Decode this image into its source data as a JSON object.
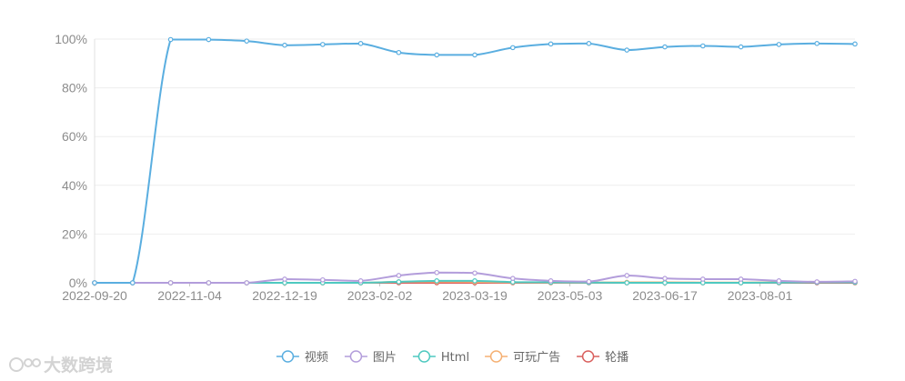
{
  "watermark": {
    "text": "大数跨境"
  },
  "chart_data": {
    "type": "line",
    "x": [
      "2022-09-20",
      "2022-10-08",
      "2022-10-26",
      "2022-11-13",
      "2022-12-01",
      "2022-12-19",
      "2023-01-06",
      "2023-01-24",
      "2023-02-11",
      "2023-03-01",
      "2023-03-19",
      "2023-04-06",
      "2023-04-24",
      "2023-05-12",
      "2023-05-30",
      "2023-06-17",
      "2023-07-05",
      "2023-07-23",
      "2023-08-10",
      "2023-08-28",
      "2023-09-15"
    ],
    "x_ticks": [
      "2022-09-20",
      "2022-11-04",
      "2022-12-19",
      "2023-02-02",
      "2023-03-19",
      "2023-05-03",
      "2023-06-17",
      "2023-08-01"
    ],
    "y_ticks": [
      "0%",
      "20%",
      "40%",
      "60%",
      "80%",
      "100%"
    ],
    "ylim": [
      0,
      100
    ],
    "y_unit": "%",
    "grid": true,
    "legend_position": "bottom-center",
    "series": [
      {
        "name": "视频",
        "color": "#5aaee0",
        "values": [
          0,
          0,
          99.8,
          99.8,
          99.2,
          97.5,
          97.8,
          98.2,
          94.5,
          93.5,
          93.5,
          96.5,
          98.0,
          98.2,
          95.5,
          96.8,
          97.2,
          96.8,
          97.8,
          98.2,
          98.0
        ]
      },
      {
        "name": "图片",
        "color": "#b39ddb",
        "values": [
          0,
          0,
          0,
          0,
          0,
          1.5,
          1.2,
          0.8,
          3.0,
          4.2,
          4.0,
          1.8,
          0.8,
          0.5,
          3.0,
          1.8,
          1.5,
          1.5,
          0.8,
          0.4,
          0.6
        ]
      },
      {
        "name": "Html",
        "color": "#4ec9c0",
        "values": [
          0,
          0,
          0,
          0,
          0,
          0,
          0,
          0,
          0.4,
          0.8,
          0.8,
          0.3,
          0.2,
          0.1,
          0,
          0,
          0,
          0,
          0.1,
          0.2,
          0.2
        ]
      },
      {
        "name": "可玩广告",
        "color": "#f5b073",
        "values": [
          0,
          0,
          0,
          0,
          0,
          0,
          0,
          0,
          0.4,
          0.5,
          0.4,
          0.2,
          0.1,
          0.1,
          0.2,
          0.2,
          0.1,
          0.1,
          0.2,
          0.3,
          0.2
        ]
      },
      {
        "name": "轮播",
        "color": "#d9605e",
        "values": [
          0,
          0,
          0,
          0,
          0,
          0,
          0,
          0,
          0,
          0,
          0,
          0,
          0,
          0,
          0,
          0,
          0,
          0,
          0,
          0,
          0
        ]
      }
    ]
  }
}
